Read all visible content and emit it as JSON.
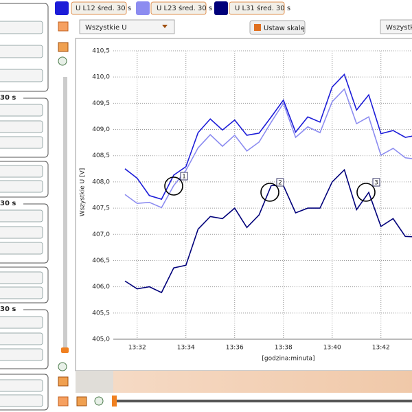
{
  "legend": [
    "U L12 śred. 30 s",
    "U L23 śred. 30 s",
    "U L31 śred. 30 s"
  ],
  "toolbar": {
    "dropdown": "Wszystkie U",
    "scale_button": "Ustaw skalę",
    "right_dropdown": "Wszystki"
  },
  "left_panel": {
    "headers": [
      "30 s",
      "30 s",
      "30 s"
    ]
  },
  "markers": [
    "1",
    "2",
    "3"
  ],
  "chart_data": {
    "type": "line",
    "ylabel": "Wszystkie U [V]",
    "xlabel": "[godzina:minuta]",
    "grid": true,
    "categories": [
      null,
      "13:32",
      null,
      null,
      null,
      "13:34",
      null,
      null,
      null,
      "13:36",
      null,
      null,
      null,
      "13:38",
      null,
      null,
      null,
      "13:40",
      null,
      null,
      null,
      "13:42",
      null,
      null,
      null
    ],
    "ylim": [
      405,
      410.5
    ],
    "yticks": [
      {
        "value": 405,
        "label": "405,0"
      },
      {
        "value": 405.5,
        "label": "405,5"
      },
      {
        "value": 406,
        "label": "406,0"
      },
      {
        "value": 406.5,
        "label": "406,5"
      },
      {
        "value": 407,
        "label": "407,0"
      },
      {
        "value": 407.5,
        "label": "407,5"
      },
      {
        "value": 408,
        "label": "408,0"
      },
      {
        "value": 408.5,
        "label": "408,5"
      },
      {
        "value": 409,
        "label": "409,0"
      },
      {
        "value": 409.5,
        "label": "409,5"
      },
      {
        "value": 410,
        "label": "410,0"
      },
      {
        "value": 410.5,
        "label": "410,5"
      }
    ],
    "series": [
      {
        "name": "U L12 śred. 30 s",
        "color": "#1c1cd8",
        "values": [
          408.25,
          408.07,
          407.74,
          407.67,
          408.13,
          408.29,
          408.94,
          409.2,
          408.99,
          409.18,
          408.89,
          408.93,
          409.24,
          409.56,
          408.95,
          409.24,
          409.14,
          409.81,
          410.05,
          409.37,
          409.66,
          408.92,
          408.98,
          408.85,
          408.89
        ]
      },
      {
        "name": "U L23 śred. 30 s",
        "color": "#8c8cf0",
        "values": [
          407.76,
          407.59,
          407.61,
          407.51,
          407.93,
          408.22,
          408.65,
          408.9,
          408.68,
          408.89,
          408.59,
          408.76,
          409.14,
          409.5,
          408.85,
          409.05,
          408.94,
          409.53,
          409.77,
          409.11,
          409.24,
          408.51,
          408.64,
          408.46,
          408.43
        ]
      },
      {
        "name": "U L31 śred. 30 s",
        "color": "#00007a",
        "values": [
          406.11,
          405.96,
          406,
          405.89,
          406.36,
          406.41,
          407.1,
          407.34,
          407.3,
          407.5,
          407.13,
          407.37,
          407.93,
          407.93,
          407.41,
          407.5,
          407.5,
          408,
          408.23,
          407.47,
          407.8,
          407.15,
          407.3,
          406.96,
          406.95
        ]
      }
    ]
  }
}
